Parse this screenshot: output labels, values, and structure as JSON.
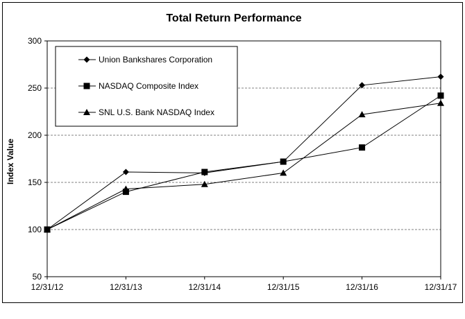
{
  "chart_data": {
    "type": "line",
    "title": "Total Return Performance",
    "xlabel": "",
    "ylabel": "Index Value",
    "categories": [
      "12/31/12",
      "12/31/13",
      "12/31/14",
      "12/31/15",
      "12/31/16",
      "12/31/17"
    ],
    "ylim": [
      50,
      300
    ],
    "yticks": [
      50,
      100,
      150,
      200,
      250,
      300
    ],
    "grid": true,
    "legend_placement": "top-left",
    "series": [
      {
        "name": "Union Bankshares Corporation",
        "marker": "diamond",
        "color": "#000000",
        "values": [
          100,
          161,
          160,
          172,
          253,
          262
        ]
      },
      {
        "name": "NASDAQ Composite Index",
        "marker": "square",
        "color": "#000000",
        "values": [
          100,
          140,
          161,
          172,
          187,
          242
        ]
      },
      {
        "name": "SNL U.S. Bank NASDAQ Index",
        "marker": "triangle",
        "color": "#000000",
        "values": [
          100,
          143,
          148,
          160,
          222,
          234
        ]
      }
    ]
  }
}
